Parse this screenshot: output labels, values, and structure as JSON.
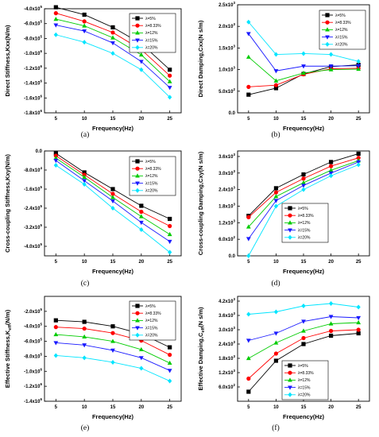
{
  "figure": {
    "legend_labels": [
      "λ=5%",
      "λ=8.33%",
      "λ=12%",
      "λ=15%",
      "λ=20%"
    ],
    "series_colors": [
      "#000000",
      "#ff0000",
      "#00cc00",
      "#1a1aff",
      "#00e5ff"
    ],
    "markers": [
      "square",
      "circle",
      "triangle-up",
      "triangle-down",
      "diamond"
    ]
  },
  "chart_data": [
    {
      "panel": "(a)",
      "type": "line",
      "xlabel": "Frequency(Hz)",
      "ylabel": "Direct Stiffness,Kxx(N/m)",
      "x": [
        5,
        10,
        15,
        20,
        25
      ],
      "xticks": [
        "5",
        "10",
        "15",
        "20",
        "25"
      ],
      "ylim": [
        -1800000.0,
        -400000.0
      ],
      "yticks": [
        {
          "v": -400000,
          "mant": "-4.0x10",
          "exp": "5"
        },
        {
          "v": -600000,
          "mant": "-6.0x10",
          "exp": "5"
        },
        {
          "v": -800000,
          "mant": "-8.0x10",
          "exp": "5"
        },
        {
          "v": -1000000,
          "mant": "-1.0x10",
          "exp": "6"
        },
        {
          "v": -1200000,
          "mant": "-1.2x10",
          "exp": "6"
        },
        {
          "v": -1400000,
          "mant": "-1.4x10",
          "exp": "6"
        },
        {
          "v": -1600000,
          "mant": "-1.6x10",
          "exp": "6"
        },
        {
          "v": -1800000,
          "mant": "-1.8x10",
          "exp": "6"
        }
      ],
      "legend_position": "top-right",
      "series": [
        {
          "name": "λ=5%",
          "values": [
            -380000,
            -480000,
            -650000,
            -870000,
            -1220000
          ]
        },
        {
          "name": "λ=8.33%",
          "values": [
            -460000,
            -570000,
            -720000,
            -950000,
            -1300000
          ]
        },
        {
          "name": "λ=12%",
          "values": [
            -540000,
            -630000,
            -790000,
            -1020000,
            -1380000
          ]
        },
        {
          "name": "λ=15%",
          "values": [
            -620000,
            -700000,
            -860000,
            -1110000,
            -1460000
          ]
        },
        {
          "name": "λ=20%",
          "values": [
            -750000,
            -850000,
            -1000000,
            -1220000,
            -1590000
          ]
        }
      ]
    },
    {
      "panel": "(b)",
      "type": "line",
      "xlabel": "Frequency(Hz)",
      "ylabel": "Direct Damping,Cxx(N s/m)",
      "x": [
        5,
        10,
        15,
        20,
        25
      ],
      "xticks": [
        "5",
        "10",
        "15",
        "20",
        "25"
      ],
      "ylim": [
        0,
        2500
      ],
      "yticks": [
        {
          "v": 0,
          "mant": "0.0",
          "exp": ""
        },
        {
          "v": 500,
          "mant": "5.0x10",
          "exp": "2"
        },
        {
          "v": 1000,
          "mant": "1.0x10",
          "exp": "3"
        },
        {
          "v": 1500,
          "mant": "1.5x10",
          "exp": "3"
        },
        {
          "v": 2000,
          "mant": "2.0x10",
          "exp": "3"
        },
        {
          "v": 2500,
          "mant": "2.5x10",
          "exp": "3"
        }
      ],
      "legend_position": "top-right",
      "series": [
        {
          "name": "λ=5%",
          "values": [
            420,
            570,
            900,
            1070,
            1110
          ]
        },
        {
          "name": "λ=8.33%",
          "values": [
            600,
            640,
            890,
            1020,
            1030
          ]
        },
        {
          "name": "λ=12%",
          "values": [
            1290,
            740,
            920,
            1000,
            1010
          ]
        },
        {
          "name": "λ=15%",
          "values": [
            1830,
            970,
            1080,
            1080,
            1090
          ]
        },
        {
          "name": "λ=20%",
          "values": [
            2100,
            1350,
            1370,
            1350,
            1190
          ]
        }
      ]
    },
    {
      "panel": "(c)",
      "type": "line",
      "xlabel": "Frequency(Hz)",
      "ylabel": "Cross-coupling Stiffness,Kxy(N/m)",
      "x": [
        5,
        10,
        15,
        20,
        25
      ],
      "xticks": [
        "5",
        "10",
        "15",
        "20",
        "25"
      ],
      "ylim": [
        -440000,
        0
      ],
      "yticks": [
        {
          "v": 0,
          "mant": "0.0",
          "exp": ""
        },
        {
          "v": -80000,
          "mant": "-8.0x10",
          "exp": "4"
        },
        {
          "v": -160000,
          "mant": "-1.6x10",
          "exp": "5"
        },
        {
          "v": -240000,
          "mant": "-2.4x10",
          "exp": "5"
        },
        {
          "v": -320000,
          "mant": "-3.2x10",
          "exp": "5"
        },
        {
          "v": -400000,
          "mant": "-4.0x10",
          "exp": "5"
        }
      ],
      "legend_position": "top-right",
      "series": [
        {
          "name": "λ=5%",
          "values": [
            -10000,
            -90000,
            -160000,
            -230000,
            -285000
          ]
        },
        {
          "name": "λ=8.33%",
          "values": [
            -20000,
            -100000,
            -180000,
            -255000,
            -315000
          ]
        },
        {
          "name": "λ=12%",
          "values": [
            -30000,
            -110000,
            -195000,
            -275000,
            -350000
          ]
        },
        {
          "name": "λ=15%",
          "values": [
            -40000,
            -125000,
            -210000,
            -300000,
            -380000
          ]
        },
        {
          "name": "λ=20%",
          "values": [
            -60000,
            -140000,
            -240000,
            -330000,
            -425000
          ]
        }
      ]
    },
    {
      "panel": "(d)",
      "type": "line",
      "xlabel": "Frequency(Hz)",
      "ylabel": "Cross-coupling Damping,Cxy(N s/m)",
      "x": [
        5,
        10,
        15,
        20,
        25
      ],
      "xticks": [
        "5",
        "10",
        "15",
        "20",
        "25"
      ],
      "ylim": [
        0,
        3800
      ],
      "yticks": [
        {
          "v": 0,
          "mant": "0.0",
          "exp": ""
        },
        {
          "v": 600,
          "mant": "6.0x10",
          "exp": "2"
        },
        {
          "v": 1200,
          "mant": "1.2x10",
          "exp": "3"
        },
        {
          "v": 1800,
          "mant": "1.8x10",
          "exp": "3"
        },
        {
          "v": 2400,
          "mant": "2.4x10",
          "exp": "3"
        },
        {
          "v": 3000,
          "mant": "3.0x10",
          "exp": "3"
        },
        {
          "v": 3600,
          "mant": "3.6x10",
          "exp": "3"
        }
      ],
      "legend_position": "bottom-right",
      "series": [
        {
          "name": "λ=5%",
          "values": [
            1450,
            2450,
            2950,
            3400,
            3700
          ]
        },
        {
          "name": "λ=8.33%",
          "values": [
            1400,
            2300,
            2800,
            3250,
            3550
          ]
        },
        {
          "name": "λ=12%",
          "values": [
            1050,
            2150,
            2650,
            3100,
            3450
          ]
        },
        {
          "name": "λ=15%",
          "values": [
            620,
            2000,
            2550,
            3000,
            3400
          ]
        },
        {
          "name": "λ=20%",
          "values": [
            0,
            1800,
            2400,
            2900,
            3300
          ]
        }
      ]
    },
    {
      "panel": "(e)",
      "type": "line",
      "xlabel": "Frequency(Hz)",
      "ylabel": "Effective Stiffness,Keff(N/m)",
      "ylabel_parts": {
        "pre": "Effective Stiffness,K",
        "sub": "eff",
        "post": "(N/m)"
      },
      "x": [
        5,
        10,
        15,
        20,
        25
      ],
      "xticks": [
        "5",
        "10",
        "15",
        "20",
        "25"
      ],
      "ylim": [
        -1400000.0,
        0
      ],
      "yticks": [
        {
          "v": -200000,
          "mant": "-2.0x10",
          "exp": "5"
        },
        {
          "v": -400000,
          "mant": "-4.0x10",
          "exp": "5"
        },
        {
          "v": -600000,
          "mant": "-6.0x10",
          "exp": "5"
        },
        {
          "v": -800000,
          "mant": "-8.0x10",
          "exp": "5"
        },
        {
          "v": -1000000,
          "mant": "-1.0x10",
          "exp": "6"
        },
        {
          "v": -1200000,
          "mant": "-1.2x10",
          "exp": "6"
        },
        {
          "v": -1400000,
          "mant": "-1.4x10",
          "exp": "6"
        }
      ],
      "legend_position": "top-right",
      "series": [
        {
          "name": "λ=5%",
          "values": [
            -320000,
            -340000,
            -400000,
            -500000,
            -680000
          ]
        },
        {
          "name": "λ=8.33%",
          "values": [
            -410000,
            -430000,
            -490000,
            -590000,
            -780000
          ]
        },
        {
          "name": "λ=12%",
          "values": [
            -510000,
            -540000,
            -600000,
            -710000,
            -890000
          ]
        },
        {
          "name": "λ=15%",
          "values": [
            -620000,
            -650000,
            -720000,
            -820000,
            -990000
          ]
        },
        {
          "name": "λ=20%",
          "values": [
            -790000,
            -820000,
            -880000,
            -960000,
            -1130000
          ]
        }
      ]
    },
    {
      "panel": "(f)",
      "type": "line",
      "xlabel": "Frequency(Hz)",
      "ylabel": "Effective Damping,Ceff(N s/m)",
      "ylabel_parts": {
        "pre": "Effective Damping,C",
        "sub": "eff",
        "post": "(N s/m)"
      },
      "x": [
        5,
        10,
        15,
        20,
        25
      ],
      "xticks": [
        "5",
        "10",
        "15",
        "20",
        "25"
      ],
      "ylim": [
        0,
        4400
      ],
      "yticks": [
        {
          "v": 600,
          "mant": "6.0x10",
          "exp": "2"
        },
        {
          "v": 1200,
          "mant": "1.2x10",
          "exp": "3"
        },
        {
          "v": 1800,
          "mant": "1.8x10",
          "exp": "3"
        },
        {
          "v": 2400,
          "mant": "2.4x10",
          "exp": "3"
        },
        {
          "v": 3000,
          "mant": "3.0x10",
          "exp": "3"
        },
        {
          "v": 3600,
          "mant": "3.6x10",
          "exp": "3"
        },
        {
          "v": 4200,
          "mant": "4.2x10",
          "exp": "3"
        }
      ],
      "legend_position": "bottom-right",
      "series": [
        {
          "name": "λ=5%",
          "values": [
            400,
            1700,
            2400,
            2750,
            2850
          ]
        },
        {
          "name": "λ=8.33%",
          "values": [
            950,
            2000,
            2650,
            2950,
            3000
          ]
        },
        {
          "name": "λ=12%",
          "values": [
            1800,
            2450,
            2950,
            3250,
            3300
          ]
        },
        {
          "name": "λ=15%",
          "values": [
            2550,
            2850,
            3350,
            3550,
            3500
          ]
        },
        {
          "name": "λ=20%",
          "values": [
            3650,
            3750,
            4000,
            4100,
            3950
          ]
        }
      ]
    }
  ]
}
